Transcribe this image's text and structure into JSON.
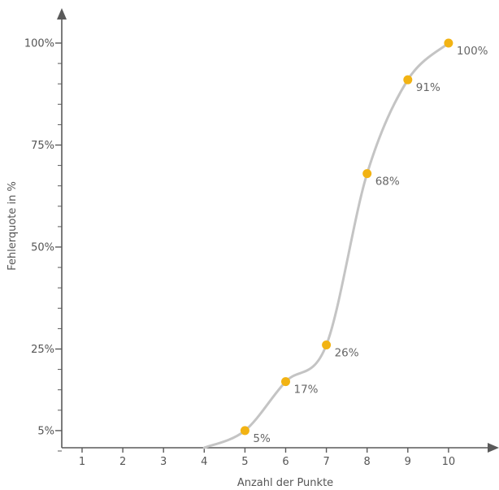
{
  "chart_data": {
    "type": "line",
    "xlabel": "Anzahl der Punkte",
    "ylabel": "Fehlerquote in %",
    "xlim": [
      0,
      11
    ],
    "ylim": [
      0,
      110
    ],
    "x_ticks": [
      1,
      2,
      3,
      4,
      5,
      6,
      7,
      8,
      9,
      10
    ],
    "y_ticks": [
      {
        "value": 5,
        "label": "5%"
      },
      {
        "value": 25,
        "label": "25%"
      },
      {
        "value": 50,
        "label": "50%"
      },
      {
        "value": 75,
        "label": "75%"
      },
      {
        "value": 100,
        "label": "100%"
      }
    ],
    "y_minor_ticks": [
      0,
      10,
      15,
      20,
      30,
      35,
      40,
      45,
      55,
      60,
      65,
      70,
      80,
      85,
      90,
      95
    ],
    "series": [
      {
        "curve_start": {
          "x": 4,
          "y": 0
        },
        "points": [
          {
            "x": 5,
            "y": 5,
            "label": "5%"
          },
          {
            "x": 6,
            "y": 17,
            "label": "17%"
          },
          {
            "x": 7,
            "y": 26,
            "label": "26%"
          },
          {
            "x": 8,
            "y": 68,
            "label": "68%"
          },
          {
            "x": 9,
            "y": 91,
            "label": "91%"
          },
          {
            "x": 10,
            "y": 100,
            "label": "100%"
          }
        ]
      }
    ],
    "colors": {
      "axis": "#5a5a5a",
      "curve": "#c4c4c4",
      "marker": "#f2b313"
    }
  }
}
